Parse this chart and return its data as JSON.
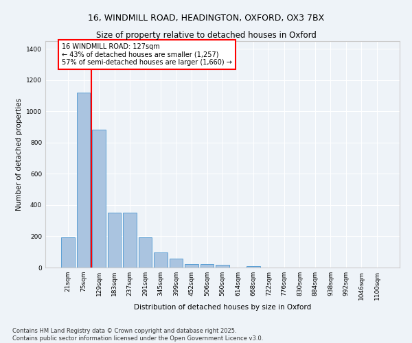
{
  "title1": "16, WINDMILL ROAD, HEADINGTON, OXFORD, OX3 7BX",
  "title2": "Size of property relative to detached houses in Oxford",
  "xlabel": "Distribution of detached houses by size in Oxford",
  "ylabel": "Number of detached properties",
  "categories": [
    "21sqm",
    "75sqm",
    "129sqm",
    "183sqm",
    "237sqm",
    "291sqm",
    "345sqm",
    "399sqm",
    "452sqm",
    "506sqm",
    "560sqm",
    "614sqm",
    "668sqm",
    "722sqm",
    "776sqm",
    "830sqm",
    "884sqm",
    "938sqm",
    "992sqm",
    "1046sqm",
    "1100sqm"
  ],
  "values": [
    195,
    1120,
    885,
    350,
    350,
    195,
    95,
    58,
    22,
    22,
    17,
    0,
    10,
    0,
    0,
    0,
    0,
    0,
    0,
    0,
    0
  ],
  "bar_color": "#aac4e0",
  "bar_edge_color": "#5a9fd4",
  "vline_x": 1.5,
  "vline_color": "red",
  "annotation_text": "16 WINDMILL ROAD: 127sqm\n← 43% of detached houses are smaller (1,257)\n57% of semi-detached houses are larger (1,660) →",
  "annotation_box_color": "white",
  "annotation_box_edgecolor": "red",
  "ylim": [
    0,
    1450
  ],
  "yticks": [
    0,
    200,
    400,
    600,
    800,
    1000,
    1200,
    1400
  ],
  "bg_color": "#eef3f8",
  "grid_color": "white",
  "footer_line1": "Contains HM Land Registry data © Crown copyright and database right 2025.",
  "footer_line2": "Contains public sector information licensed under the Open Government Licence v3.0.",
  "title_fontsize": 9,
  "title2_fontsize": 8.5,
  "axis_label_fontsize": 7.5,
  "tick_fontsize": 6.5,
  "annotation_fontsize": 7,
  "footer_fontsize": 6
}
